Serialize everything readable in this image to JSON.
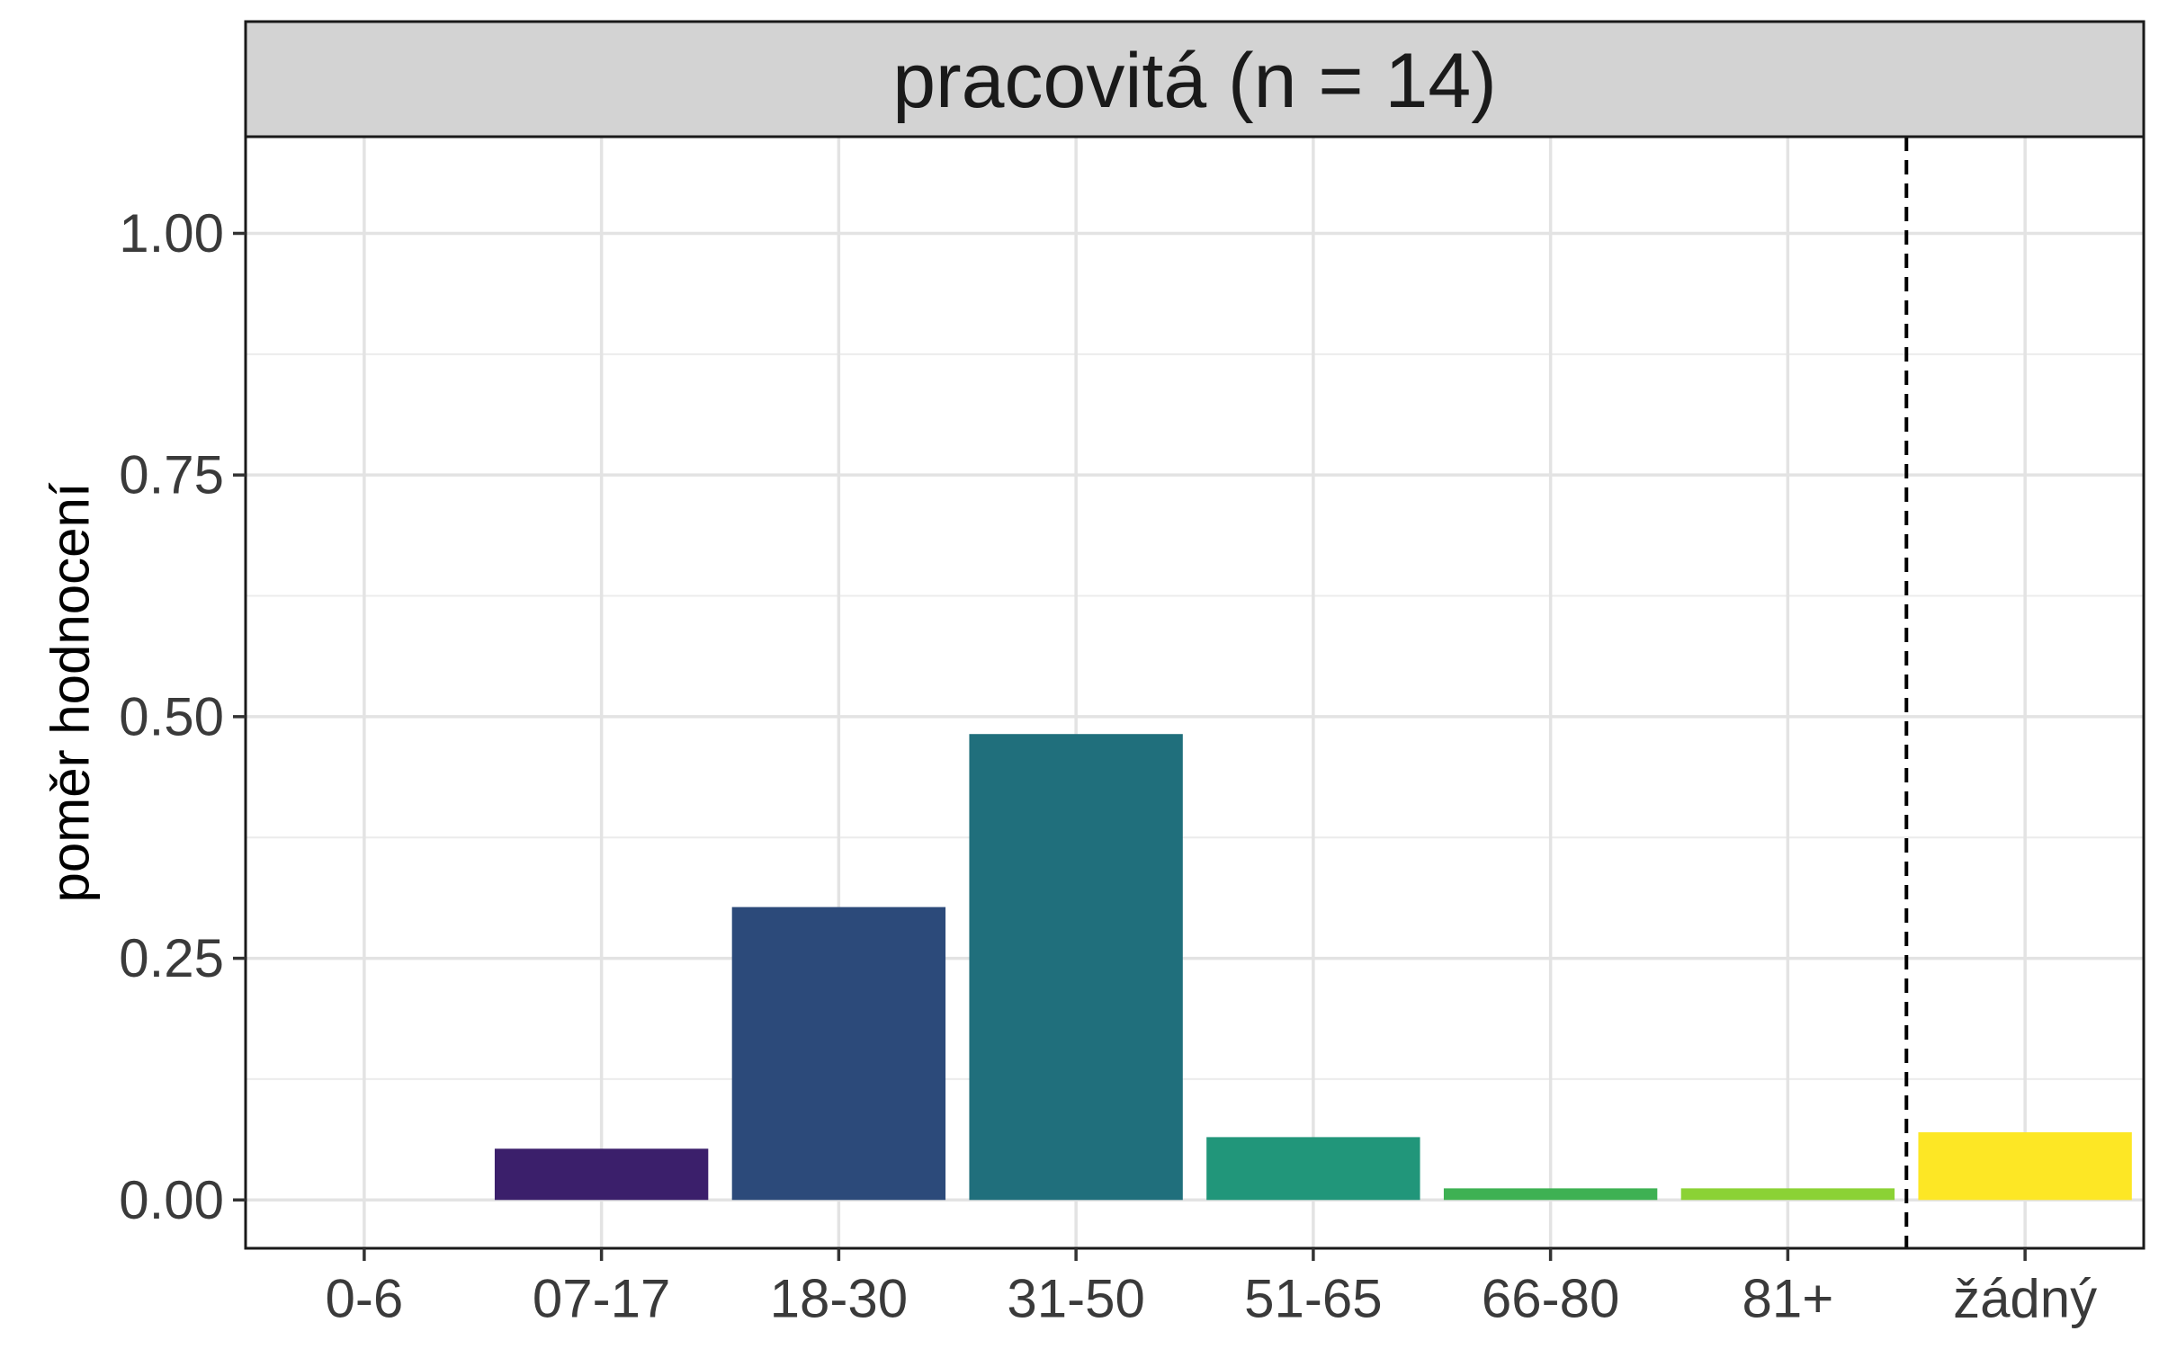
{
  "chart_data": {
    "type": "bar",
    "facet_title": "pracovitá (n = 14)",
    "ylabel": "poměr hodnocení",
    "xlabel": "",
    "categories": [
      "0-6",
      "07-17",
      "18-30",
      "31-50",
      "51-65",
      "66-80",
      "81+",
      "žádný"
    ],
    "values": [
      0.0,
      0.053,
      0.303,
      0.482,
      0.065,
      0.012,
      0.012,
      0.07
    ],
    "colors": [
      "#440154",
      "#3b1f6b",
      "#2c4a7a",
      "#206f7c",
      "#21967a",
      "#3eb153",
      "#8bd235",
      "#fde725"
    ],
    "ylim": [
      -0.05,
      1.1
    ],
    "yticks": [
      0.0,
      0.25,
      0.5,
      0.75,
      1.0
    ],
    "ytick_labels": [
      "0.00",
      "0.25",
      "0.50",
      "0.75",
      "1.00"
    ],
    "reference_line": {
      "style": "dashed",
      "between": [
        "81+",
        "žádný"
      ]
    },
    "grid": true,
    "legend": "none"
  }
}
